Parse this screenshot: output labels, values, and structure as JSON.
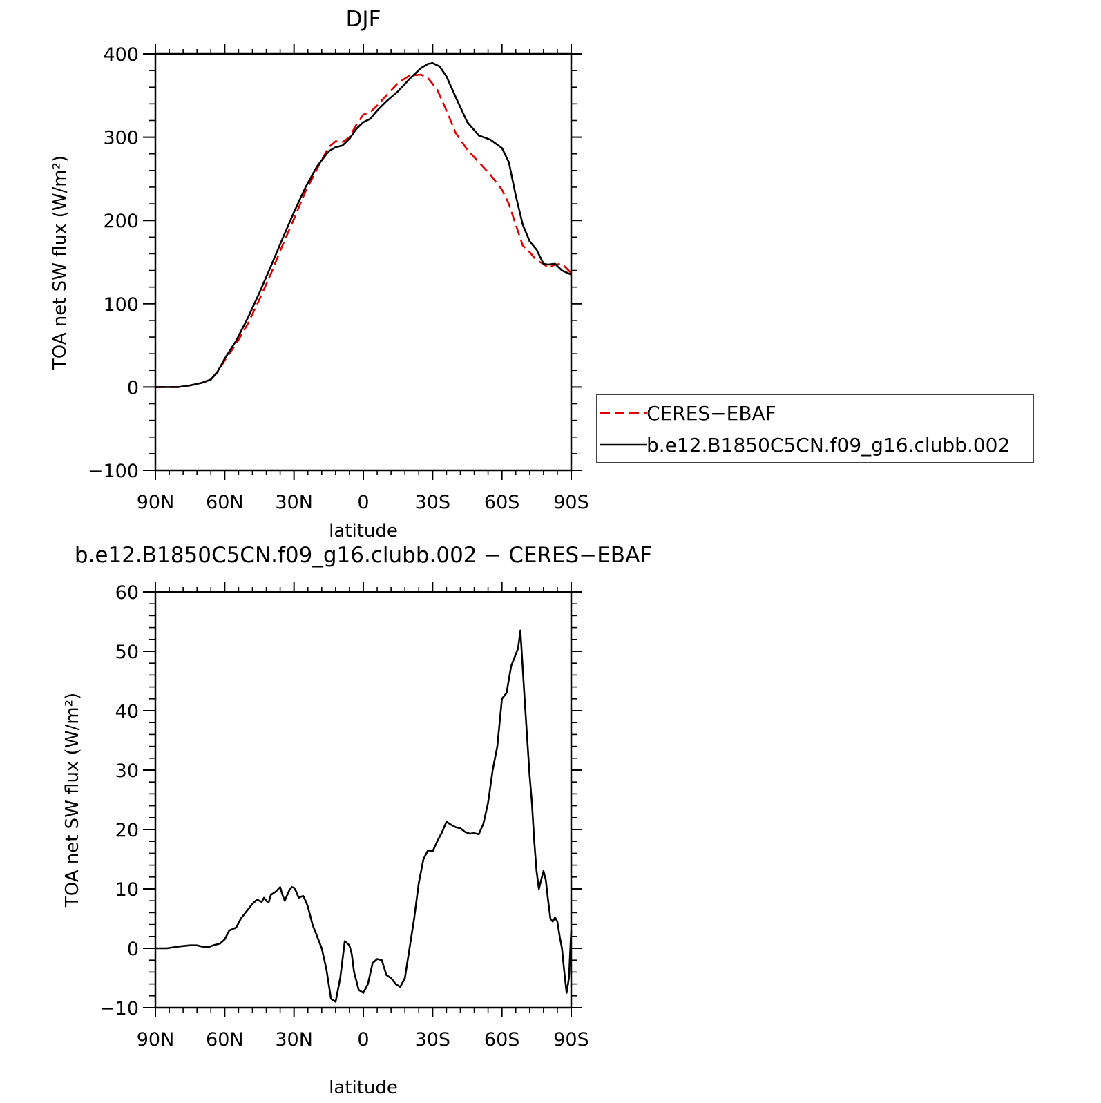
{
  "chart_data": [
    {
      "type": "line",
      "title": "DJF",
      "xlabel": "latitude",
      "ylabel": "TOA net SW flux (W/m²)",
      "xlim": [
        -90,
        90
      ],
      "ylim": [
        -100,
        400
      ],
      "x_tick_values": [
        -90,
        -60,
        -30,
        0,
        30,
        60,
        90
      ],
      "x_tick_labels": [
        "90N",
        "60N",
        "30N",
        "0",
        "30S",
        "60S",
        "90S"
      ],
      "y_tick_values": [
        -100,
        0,
        100,
        200,
        300,
        400
      ],
      "y_tick_labels": [
        "−100",
        "0",
        "100",
        "200",
        "300",
        "400"
      ],
      "grid": false,
      "legend_position": "right",
      "series": [
        {
          "name": "CERES−EBAF",
          "color": "#e00000",
          "dash": "dashed",
          "x": [
            -90,
            -85,
            -80,
            -75,
            -70,
            -66,
            -63,
            -60,
            -55,
            -50,
            -45,
            -40,
            -35,
            -30,
            -25,
            -20,
            -15,
            -12,
            -9,
            -6,
            -3,
            0,
            3,
            6,
            10,
            15,
            20,
            25,
            28,
            32,
            36,
            40,
            45,
            50,
            55,
            60,
            63,
            66,
            69,
            72,
            75,
            78,
            80,
            83,
            86,
            90
          ],
          "y": [
            0,
            0,
            0,
            2,
            5,
            9,
            18,
            32,
            52,
            76,
            105,
            136,
            170,
            202,
            235,
            262,
            288,
            295,
            294,
            300,
            315,
            327,
            330,
            338,
            350,
            365,
            374,
            375,
            371,
            357,
            332,
            305,
            285,
            270,
            255,
            237,
            220,
            195,
            170,
            162,
            152,
            148,
            143,
            147,
            148,
            137
          ]
        },
        {
          "name": "b.e12.B1850C5CN.f09_g16.clubb.002",
          "color": "#000000",
          "dash": "solid",
          "x": [
            -90,
            -85,
            -80,
            -75,
            -70,
            -66,
            -63,
            -60,
            -55,
            -50,
            -45,
            -40,
            -35,
            -30,
            -25,
            -20,
            -15,
            -12,
            -9,
            -6,
            -3,
            0,
            3,
            6,
            10,
            15,
            20,
            25,
            28,
            30,
            33,
            36,
            40,
            45,
            50,
            55,
            60,
            63,
            66,
            69,
            72,
            75,
            78,
            80,
            83,
            86,
            90
          ],
          "y": [
            0,
            0,
            0,
            2,
            5,
            9,
            19,
            34,
            56,
            83,
            113,
            145,
            178,
            210,
            240,
            265,
            283,
            288,
            290,
            298,
            310,
            318,
            322,
            332,
            343,
            355,
            370,
            383,
            388,
            389,
            385,
            373,
            348,
            318,
            302,
            297,
            287,
            270,
            230,
            195,
            175,
            165,
            148,
            147,
            148,
            140,
            135
          ]
        }
      ]
    },
    {
      "type": "line",
      "title": "b.e12.B1850C5CN.f09_g16.clubb.002 − CERES−EBAF",
      "xlabel": "latitude",
      "ylabel": "TOA net SW flux (W/m²)",
      "xlim": [
        -90,
        90
      ],
      "ylim": [
        -10,
        60
      ],
      "x_tick_values": [
        -90,
        -60,
        -30,
        0,
        30,
        60,
        90
      ],
      "x_tick_labels": [
        "90N",
        "60N",
        "30N",
        "0",
        "30S",
        "60S",
        "90S"
      ],
      "y_tick_values": [
        -10,
        0,
        10,
        20,
        30,
        40,
        50,
        60
      ],
      "y_tick_labels": [
        "−10",
        "0",
        "10",
        "20",
        "30",
        "40",
        "50",
        "60"
      ],
      "grid": false,
      "series": [
        {
          "color": "#000000",
          "dash": "solid",
          "x": [
            -90,
            -85,
            -80,
            -75,
            -72,
            -70,
            -67,
            -65,
            -62,
            -60,
            -58,
            -55,
            -53,
            -50,
            -48,
            -46,
            -44,
            -43,
            -42,
            -41,
            -40,
            -38,
            -36,
            -35,
            -34,
            -32,
            -31,
            -30,
            -29,
            -28,
            -27,
            -26,
            -25,
            -24,
            -23,
            -22,
            -20,
            -18,
            -16,
            -14,
            -12,
            -10,
            -8,
            -6,
            -5,
            -4,
            -2,
            0,
            2,
            4,
            6,
            8,
            10,
            12,
            14,
            16,
            18,
            20,
            22,
            24,
            26,
            28,
            30,
            32,
            34,
            36,
            38,
            40,
            42,
            44,
            46,
            48,
            50,
            52,
            54,
            56,
            58,
            60,
            62,
            64,
            65,
            66,
            67,
            68,
            70,
            72,
            73,
            74,
            75,
            76,
            77,
            78,
            79,
            80,
            81,
            82,
            83,
            84,
            85,
            86,
            87,
            88,
            89,
            90
          ],
          "y": [
            0,
            0,
            0.3,
            0.5,
            0.5,
            0.3,
            0.2,
            0.5,
            0.8,
            1.5,
            3.0,
            3.5,
            5.0,
            6.5,
            7.5,
            8.2,
            7.8,
            8.5,
            8.0,
            7.7,
            9.0,
            9.5,
            10.3,
            9.0,
            8.0,
            9.8,
            10.3,
            10.2,
            9.5,
            8.5,
            8.7,
            8.8,
            8.0,
            7.0,
            5.5,
            4.0,
            2.0,
            0,
            -3.5,
            -8.5,
            -9.0,
            -5.0,
            1.2,
            0.5,
            -1.0,
            -4.0,
            -7.0,
            -7.5,
            -6.0,
            -2.5,
            -1.8,
            -2.0,
            -4.5,
            -5.0,
            -6.0,
            -6.5,
            -5.0,
            0,
            5.0,
            11.0,
            15.0,
            16.5,
            16.3,
            18.0,
            19.5,
            21.3,
            20.8,
            20.4,
            20.2,
            19.6,
            19.3,
            19.4,
            19.2,
            21.0,
            24.5,
            30.0,
            34.0,
            42.0,
            43.0,
            47.5,
            48.5,
            49.5,
            50.5,
            53.5,
            41.0,
            29.0,
            24.5,
            18.0,
            13.0,
            10.0,
            11.5,
            13.0,
            11.5,
            8.0,
            5.0,
            4.5,
            5.2,
            4.5,
            2.0,
            0,
            -4.0,
            -7.5,
            -5.0,
            3.0
          ]
        }
      ]
    }
  ]
}
